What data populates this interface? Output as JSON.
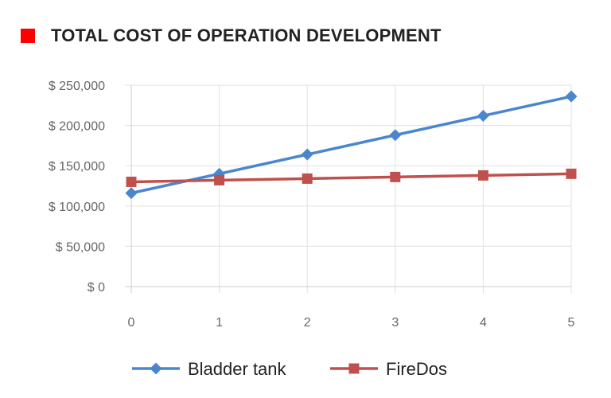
{
  "header": {
    "title": "TOTAL COST OF OPERATION DEVELOPMENT",
    "marker_color": "#ff0000"
  },
  "chart_data": {
    "type": "line",
    "title": "TOTAL COST OF OPERATION DEVELOPMENT",
    "xlabel": "",
    "ylabel": "",
    "x": [
      0,
      1,
      2,
      3,
      4,
      5
    ],
    "x_tick_labels": [
      "0",
      "1",
      "2",
      "3",
      "4",
      "5"
    ],
    "ylim": [
      0,
      250000
    ],
    "y_ticks": [
      0,
      50000,
      100000,
      150000,
      200000,
      250000
    ],
    "y_tick_labels": [
      "$ 0",
      "$ 50,000",
      "$ 100,000",
      "$ 150,000",
      "$ 200,000",
      "$ 250,000"
    ],
    "grid": true,
    "legend_position": "bottom",
    "series": [
      {
        "name": "Bladder tank",
        "values": [
          116000,
          140000,
          164000,
          188000,
          212000,
          236000
        ],
        "color": "#4a86cf",
        "marker": "diamond"
      },
      {
        "name": "FireDos",
        "values": [
          130000,
          132000,
          134000,
          136000,
          138000,
          140000
        ],
        "color": "#c0504d",
        "marker": "square"
      }
    ]
  }
}
